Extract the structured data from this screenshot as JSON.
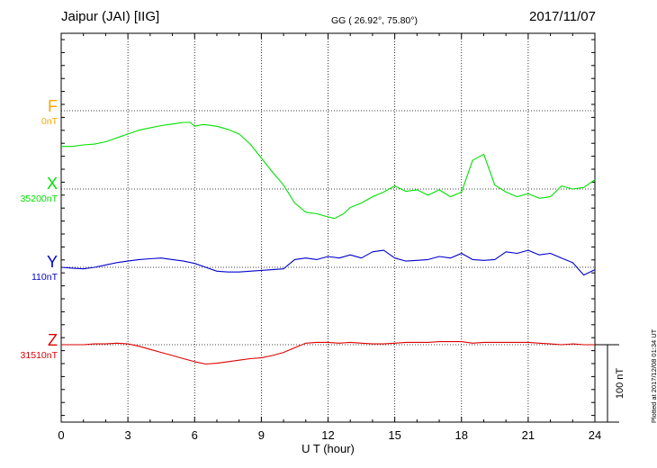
{
  "header": {
    "station": "Jaipur (JAI)  [IIG]",
    "coords": "GG ( 26.92°,  75.80°)",
    "date": "2017/11/07"
  },
  "footer": {
    "plotted": "Plotted at 2017/12/08 01:34 UT"
  },
  "chart_data": {
    "type": "line",
    "xlabel": "U T (hour)",
    "xlim": [
      0,
      24
    ],
    "xticks": [
      "0",
      "3",
      "6",
      "9",
      "12",
      "15",
      "18",
      "21",
      "24"
    ],
    "scale_label": "100 nT",
    "scale_nT": 100,
    "grid": true,
    "series": [
      {
        "name": "F",
        "baseline_label": "0nT",
        "color": "#ffa500",
        "x": [],
        "y": []
      },
      {
        "name": "X",
        "baseline_label": "35200nT",
        "color": "#00e000",
        "x": [
          0,
          0.5,
          1,
          1.5,
          2,
          2.5,
          3,
          3.5,
          4,
          4.5,
          5,
          5.5,
          5.8,
          6,
          6.3,
          6.5,
          7,
          7.5,
          8,
          8.5,
          9,
          9.5,
          10,
          10.5,
          11,
          11.5,
          12,
          12.3,
          12.7,
          13,
          13.5,
          14,
          14.5,
          15,
          15.5,
          16,
          16.5,
          17,
          17.5,
          18,
          18.5,
          19,
          19.5,
          20,
          20.5,
          21,
          21.5,
          22,
          22.5,
          23,
          23.5,
          24
        ],
        "y": [
          55,
          55,
          57,
          58,
          61,
          66,
          71,
          76,
          79,
          82,
          84,
          86,
          86,
          81,
          83,
          83,
          81,
          77,
          71,
          58,
          40,
          22,
          5,
          -18,
          -30,
          -32,
          -36,
          -38,
          -32,
          -24,
          -18,
          -10,
          -4,
          4,
          -3,
          -1,
          -8,
          -1,
          -10,
          -4,
          37,
          45,
          5,
          -4,
          -10,
          -6,
          -12,
          -10,
          4,
          0,
          2,
          12
        ]
      },
      {
        "name": "Y",
        "baseline_label": "110nT",
        "color": "#0000cc",
        "x": [
          0,
          0.5,
          1,
          1.5,
          2,
          2.5,
          3,
          3.5,
          4,
          4.5,
          5,
          5.5,
          6,
          6.5,
          7,
          7.5,
          8,
          8.5,
          9,
          9.5,
          10,
          10.5,
          11,
          11.5,
          12,
          12.5,
          13,
          13.5,
          14,
          14.5,
          15,
          15.5,
          16,
          16.5,
          17,
          17.5,
          18,
          18.5,
          19,
          19.5,
          20,
          20.5,
          21,
          21.5,
          22,
          22.5,
          23,
          23.5,
          24
        ],
        "y": [
          0,
          -1,
          -2,
          0,
          3,
          6,
          8,
          10,
          11,
          12,
          10,
          8,
          5,
          0,
          -5,
          -6,
          -6,
          -5,
          -4,
          -3,
          -2,
          10,
          12,
          10,
          14,
          12,
          16,
          12,
          20,
          22,
          12,
          8,
          9,
          10,
          14,
          12,
          18,
          10,
          9,
          10,
          20,
          18,
          22,
          16,
          18,
          12,
          6,
          -10,
          -3
        ]
      },
      {
        "name": "Z",
        "baseline_label": "31510nT",
        "color": "#dd0000",
        "x": [
          0,
          0.5,
          1,
          1.5,
          2,
          2.5,
          3,
          3.5,
          4,
          4.5,
          5,
          5.5,
          6,
          6.5,
          7,
          7.5,
          8,
          8.5,
          9,
          9.5,
          10,
          10.5,
          11,
          11.5,
          12,
          12.5,
          13,
          13.5,
          14,
          14.5,
          15,
          15.5,
          16,
          16.5,
          17,
          17.5,
          18,
          18.5,
          19,
          19.5,
          20,
          20.5,
          21,
          21.5,
          22,
          22.5,
          23,
          23.5,
          24
        ],
        "y": [
          0,
          0,
          0,
          1,
          1,
          2,
          1,
          -2,
          -6,
          -10,
          -14,
          -18,
          -22,
          -25,
          -24,
          -22,
          -20,
          -18,
          -17,
          -14,
          -10,
          -4,
          2,
          3,
          3,
          2,
          3,
          2,
          1,
          1,
          2,
          3,
          3,
          3,
          4,
          4,
          4,
          2,
          3,
          3,
          3,
          3,
          3,
          2,
          1,
          0,
          1,
          0,
          0
        ]
      }
    ]
  }
}
